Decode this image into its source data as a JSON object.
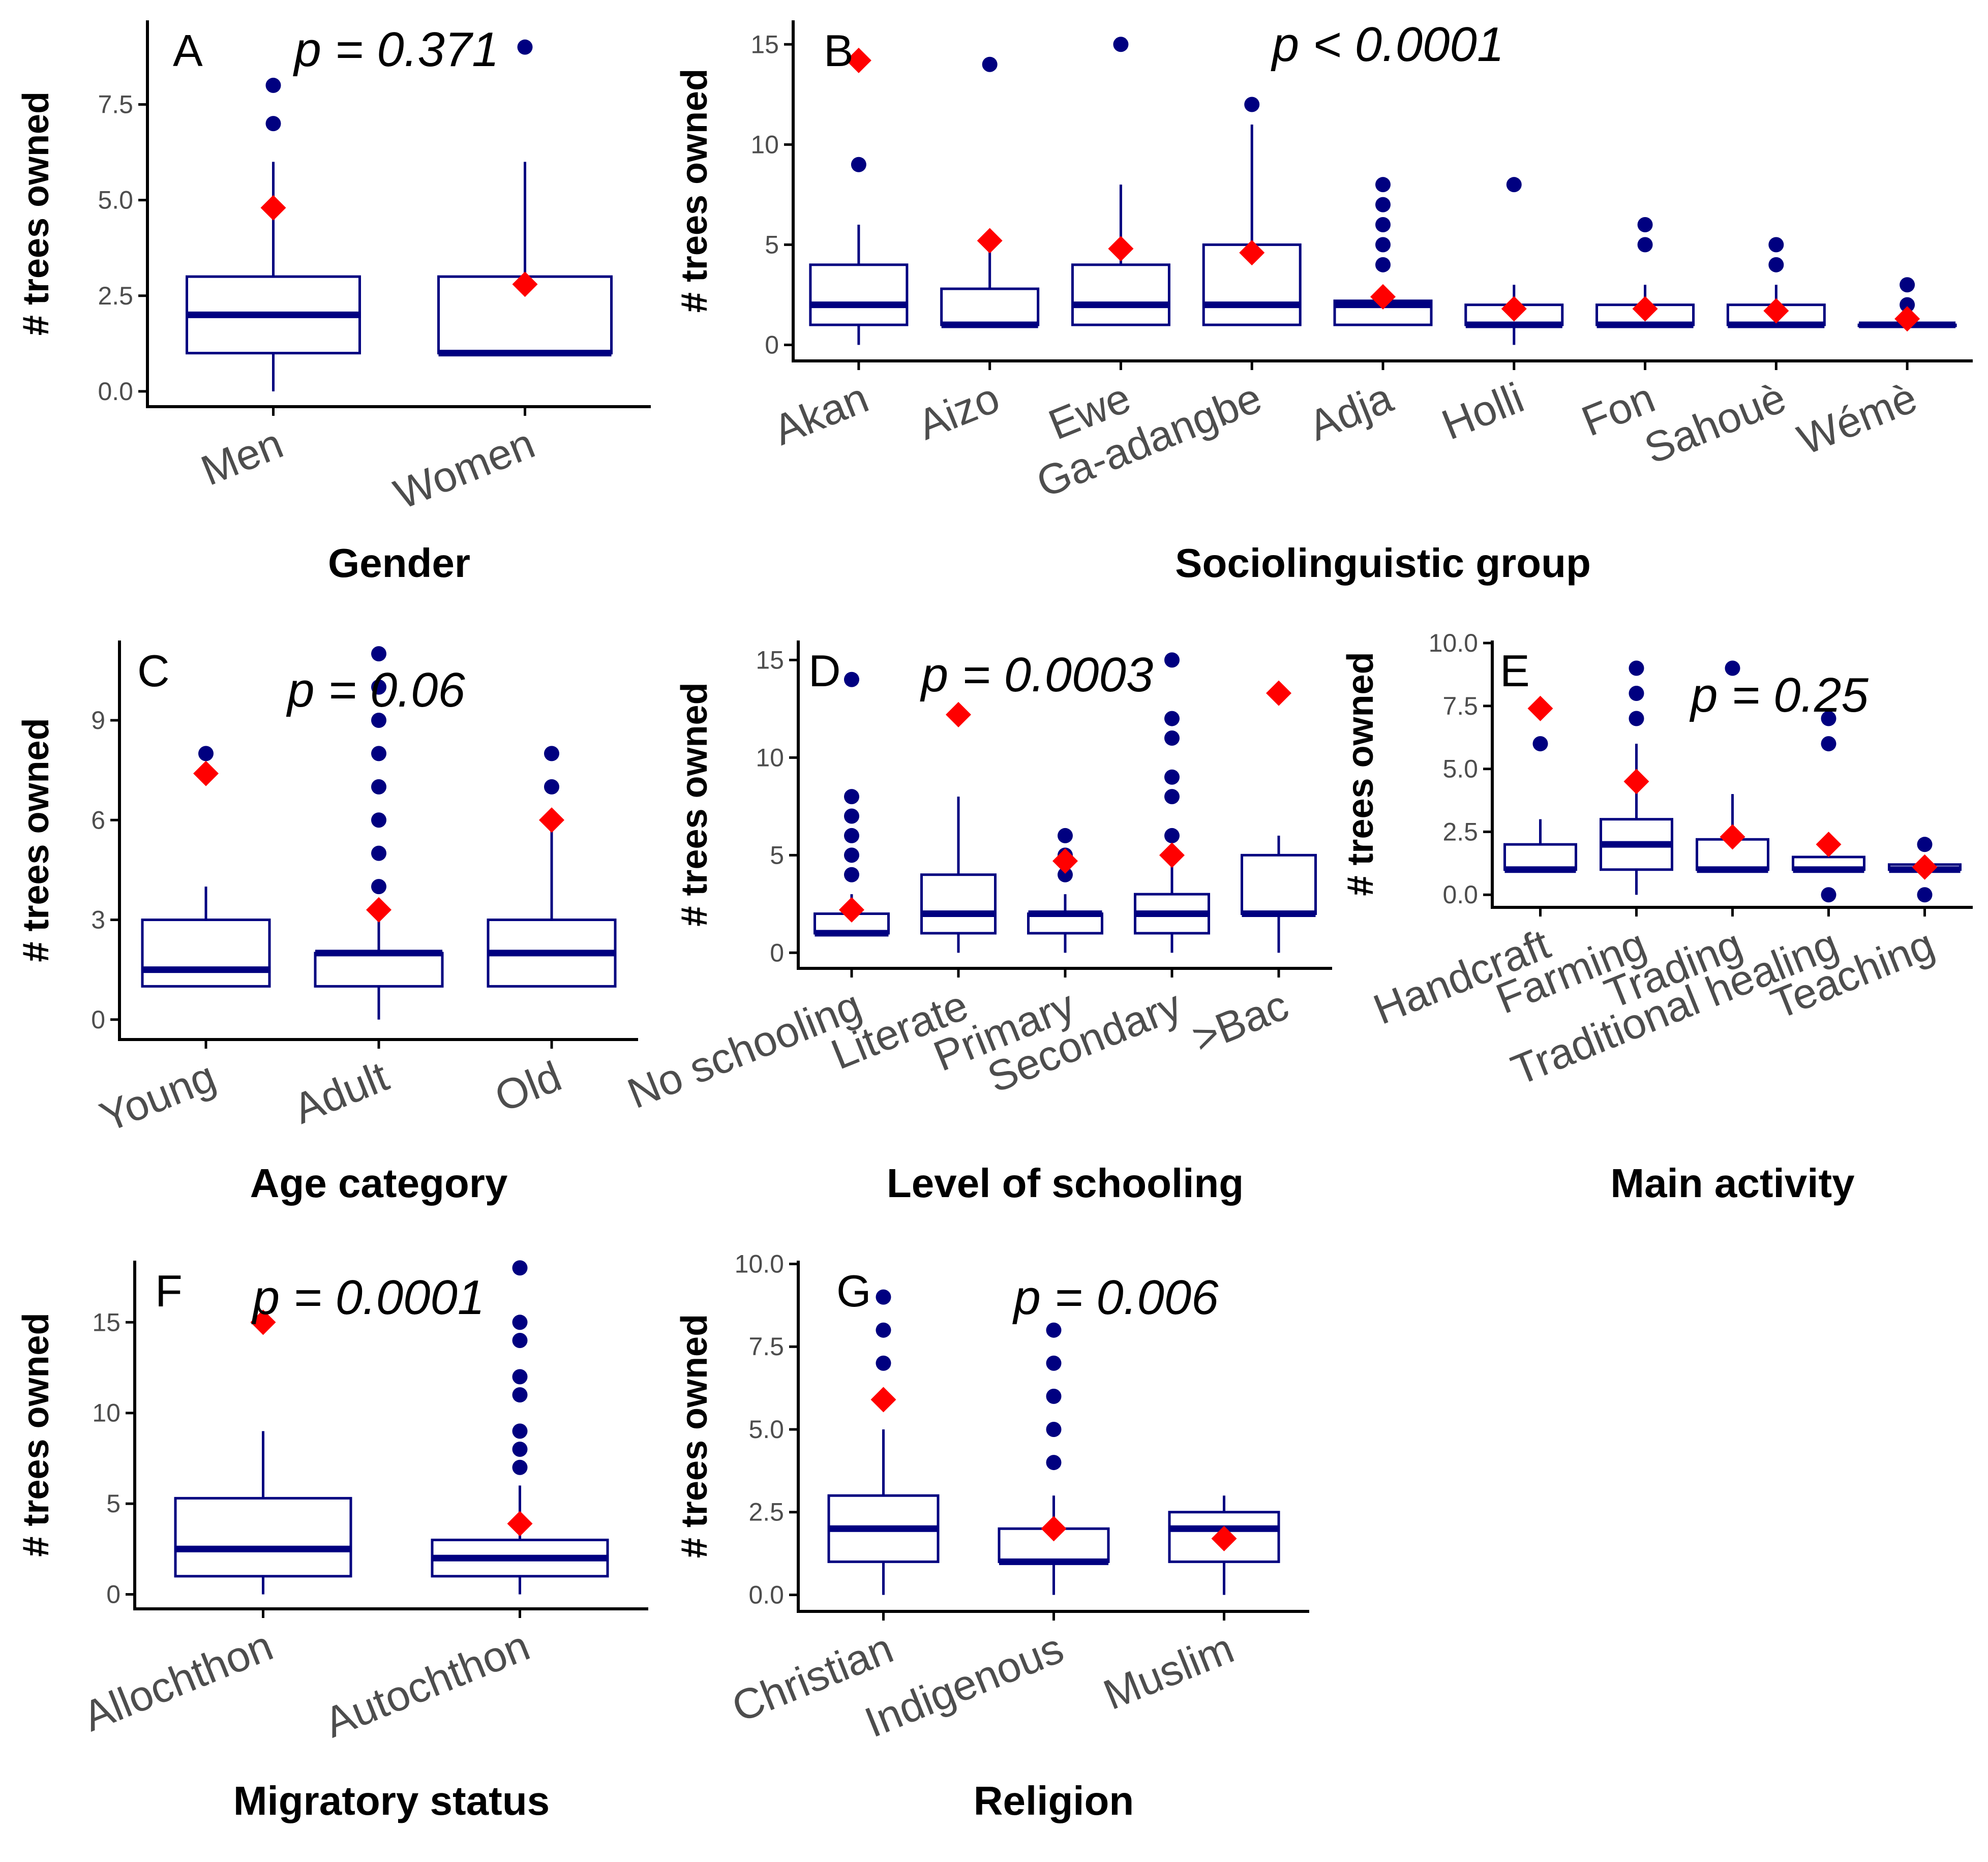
{
  "colors": {
    "box": "#000080",
    "mean": "#ff0000",
    "outlier": "#000080",
    "axis": "#000000"
  },
  "chart_data": [
    {
      "id": "A",
      "type": "boxplot",
      "panel_label": "A",
      "p_value": "p = 0.371",
      "ylabel": "# trees owned",
      "xlabel": "Gender",
      "ylim": [
        -0.4,
        9.7
      ],
      "yticks": [
        0.0,
        2.5,
        5.0,
        7.5
      ],
      "ytick_labels": [
        "0.0",
        "2.5",
        "5.0",
        "7.5"
      ],
      "xrot": -22,
      "categories": [
        "Men",
        "Women"
      ],
      "boxes": [
        {
          "q1": 1,
          "median": 2,
          "q3": 3,
          "whisker_low": 0,
          "whisker_high": 6,
          "mean": 4.8,
          "outliers": [
            7,
            8
          ]
        },
        {
          "q1": 1,
          "median": 1,
          "q3": 3,
          "whisker_low": 1,
          "whisker_high": 6,
          "mean": 2.8,
          "outliers": [
            9
          ]
        }
      ]
    },
    {
      "id": "B",
      "type": "boxplot",
      "panel_label": "B",
      "p_value": "p < 0.0001",
      "ylabel": "# trees owned",
      "xlabel": "Sociolinguistic group",
      "ylim": [
        -0.8,
        16.2
      ],
      "yticks": [
        0,
        5,
        10,
        15
      ],
      "ytick_labels": [
        "0",
        "5",
        "10",
        "15"
      ],
      "xrot": -22,
      "categories": [
        "Akan",
        "Aizo",
        "Ewe",
        "Ga-adangbe",
        "Adja",
        "Holli",
        "Fon",
        "Sahouè",
        "Wémè"
      ],
      "boxes": [
        {
          "q1": 1,
          "median": 2,
          "q3": 4,
          "whisker_low": 0,
          "whisker_high": 6,
          "mean": 14.2,
          "outliers": [
            9
          ]
        },
        {
          "q1": 1,
          "median": 1,
          "q3": 2.8,
          "whisker_low": 1,
          "whisker_high": 5,
          "mean": 5.2,
          "outliers": [
            14
          ]
        },
        {
          "q1": 1,
          "median": 2,
          "q3": 4,
          "whisker_low": 1,
          "whisker_high": 8,
          "mean": 4.8,
          "outliers": [
            15
          ]
        },
        {
          "q1": 1,
          "median": 2,
          "q3": 5,
          "whisker_low": 1,
          "whisker_high": 11,
          "mean": 4.6,
          "outliers": [
            12
          ]
        },
        {
          "q1": 1,
          "median": 2,
          "q3": 2.2,
          "whisker_low": 1,
          "whisker_high": 2.2,
          "mean": 2.4,
          "outliers": [
            4,
            5,
            6,
            7,
            8
          ]
        },
        {
          "q1": 1,
          "median": 1,
          "q3": 2,
          "whisker_low": 0,
          "whisker_high": 3,
          "mean": 1.8,
          "outliers": [
            8
          ]
        },
        {
          "q1": 1,
          "median": 1,
          "q3": 2,
          "whisker_low": 1,
          "whisker_high": 3,
          "mean": 1.8,
          "outliers": [
            5,
            6
          ]
        },
        {
          "q1": 1,
          "median": 1,
          "q3": 2,
          "whisker_low": 1,
          "whisker_high": 3,
          "mean": 1.7,
          "outliers": [
            4,
            5
          ]
        },
        {
          "q1": 1,
          "median": 1,
          "q3": 1,
          "whisker_low": 1,
          "whisker_high": 1,
          "mean": 1.3,
          "outliers": [
            2,
            3
          ]
        }
      ]
    },
    {
      "id": "C",
      "type": "boxplot",
      "panel_label": "C",
      "p_value": "p = 0.06",
      "ylabel": "# trees owned",
      "xlabel": "Age category",
      "ylim": [
        -0.6,
        11.4
      ],
      "yticks": [
        0,
        3,
        6,
        9
      ],
      "ytick_labels": [
        "0",
        "3",
        "6",
        "9"
      ],
      "xrot": -22,
      "categories": [
        "Young",
        "Adult",
        "Old"
      ],
      "boxes": [
        {
          "q1": 1,
          "median": 1.5,
          "q3": 3,
          "whisker_low": 1,
          "whisker_high": 4,
          "mean": 7.4,
          "outliers": [
            8
          ]
        },
        {
          "q1": 1,
          "median": 2,
          "q3": 2,
          "whisker_low": 0,
          "whisker_high": 3,
          "mean": 3.3,
          "outliers": [
            4,
            5,
            6,
            7,
            8,
            9,
            10,
            11
          ]
        },
        {
          "q1": 1,
          "median": 2,
          "q3": 3,
          "whisker_low": 1,
          "whisker_high": 6,
          "mean": 6.0,
          "outliers": [
            7,
            8
          ]
        }
      ]
    },
    {
      "id": "D",
      "type": "boxplot",
      "panel_label": "D",
      "p_value": "p = 0.0003",
      "ylabel": "# trees owned",
      "xlabel": "Level of schooling",
      "ylim": [
        -0.8,
        16.0
      ],
      "yticks": [
        0,
        5,
        10,
        15
      ],
      "ytick_labels": [
        "0",
        "5",
        "10",
        "15"
      ],
      "xrot": -22,
      "categories": [
        "No schooling",
        "Literate",
        "Primary",
        "Secondary",
        ">Bac"
      ],
      "boxes": [
        {
          "q1": 1,
          "median": 1,
          "q3": 2,
          "whisker_low": 1,
          "whisker_high": 3,
          "mean": 2.2,
          "outliers": [
            4,
            5,
            6,
            7,
            8,
            14
          ]
        },
        {
          "q1": 1,
          "median": 2,
          "q3": 4,
          "whisker_low": 0,
          "whisker_high": 8,
          "mean": 12.2,
          "outliers": []
        },
        {
          "q1": 1,
          "median": 2,
          "q3": 2,
          "whisker_low": 0,
          "whisker_high": 3,
          "mean": 4.7,
          "outliers": [
            4,
            5,
            6
          ]
        },
        {
          "q1": 1,
          "median": 2,
          "q3": 3,
          "whisker_low": 0,
          "whisker_high": 5,
          "mean": 5.0,
          "outliers": [
            6,
            8,
            9,
            11,
            12,
            15
          ]
        },
        {
          "q1": 2,
          "median": 2,
          "q3": 5,
          "whisker_low": 0,
          "whisker_high": 6,
          "mean": 13.3,
          "outliers": []
        }
      ]
    },
    {
      "id": "E",
      "type": "boxplot",
      "panel_label": "E",
      "p_value": "p = 0.25",
      "ylabel": "# trees owned",
      "xlabel": "Main activity",
      "ylim": [
        -0.5,
        10.1
      ],
      "yticks": [
        0.0,
        2.5,
        5.0,
        7.5,
        10.0
      ],
      "ytick_labels": [
        "0.0",
        "2.5",
        "5.0",
        "7.5",
        "10.0"
      ],
      "xrot": -22,
      "categories": [
        "Handcraft",
        "Farming",
        "Trading",
        "Traditional healing",
        "Teaching"
      ],
      "boxes": [
        {
          "q1": 1,
          "median": 1,
          "q3": 2,
          "whisker_low": 1,
          "whisker_high": 3,
          "mean": 7.4,
          "outliers": [
            6
          ]
        },
        {
          "q1": 1,
          "median": 2,
          "q3": 3,
          "whisker_low": 0,
          "whisker_high": 6,
          "mean": 4.5,
          "outliers": [
            7,
            8,
            9
          ]
        },
        {
          "q1": 1,
          "median": 1,
          "q3": 2.2,
          "whisker_low": 1,
          "whisker_high": 4,
          "mean": 2.3,
          "outliers": [
            9
          ]
        },
        {
          "q1": 1,
          "median": 1,
          "q3": 1.5,
          "whisker_low": 1,
          "whisker_high": 2,
          "mean": 2.0,
          "outliers": [
            0,
            6,
            7
          ]
        },
        {
          "q1": 1,
          "median": 1,
          "q3": 1.2,
          "whisker_low": 1,
          "whisker_high": 1.2,
          "mean": 1.1,
          "outliers": [
            0,
            2
          ]
        }
      ]
    },
    {
      "id": "F",
      "type": "boxplot",
      "panel_label": "F",
      "p_value": "p = 0.0001",
      "ylabel": "# trees owned",
      "xlabel": "Migratory status",
      "ylim": [
        -0.8,
        18.4
      ],
      "yticks": [
        0,
        5,
        10,
        15
      ],
      "ytick_labels": [
        "0",
        "5",
        "10",
        "15"
      ],
      "xrot": -22,
      "categories": [
        "Allochthon",
        "Autochthon"
      ],
      "boxes": [
        {
          "q1": 1,
          "median": 2.5,
          "q3": 5.3,
          "whisker_low": 0,
          "whisker_high": 9,
          "mean": 15.0,
          "outliers": []
        },
        {
          "q1": 1,
          "median": 2,
          "q3": 3,
          "whisker_low": 0,
          "whisker_high": 6,
          "mean": 3.9,
          "outliers": [
            7,
            8,
            9,
            11,
            12,
            14,
            15,
            18
          ]
        }
      ]
    },
    {
      "id": "G",
      "type": "boxplot",
      "panel_label": "G",
      "p_value": "p = 0.006",
      "ylabel": "# trees owned",
      "xlabel": "Religion",
      "ylim": [
        -0.5,
        10.1
      ],
      "yticks": [
        0.0,
        2.5,
        5.0,
        7.5,
        10.0
      ],
      "ytick_labels": [
        "0.0",
        "2.5",
        "5.0",
        "7.5",
        "10.0"
      ],
      "xrot": -22,
      "categories": [
        "Christian",
        "Indigenous",
        "Muslim"
      ],
      "boxes": [
        {
          "q1": 1,
          "median": 2,
          "q3": 3,
          "whisker_low": 0,
          "whisker_high": 5,
          "mean": 5.9,
          "outliers": [
            7,
            8,
            9
          ]
        },
        {
          "q1": 1,
          "median": 1,
          "q3": 2,
          "whisker_low": 0,
          "whisker_high": 3,
          "mean": 2.0,
          "outliers": [
            4,
            5,
            6,
            7,
            8
          ]
        },
        {
          "q1": 1,
          "median": 2,
          "q3": 2.5,
          "whisker_low": 0,
          "whisker_high": 3,
          "mean": 1.7,
          "outliers": []
        }
      ]
    }
  ]
}
